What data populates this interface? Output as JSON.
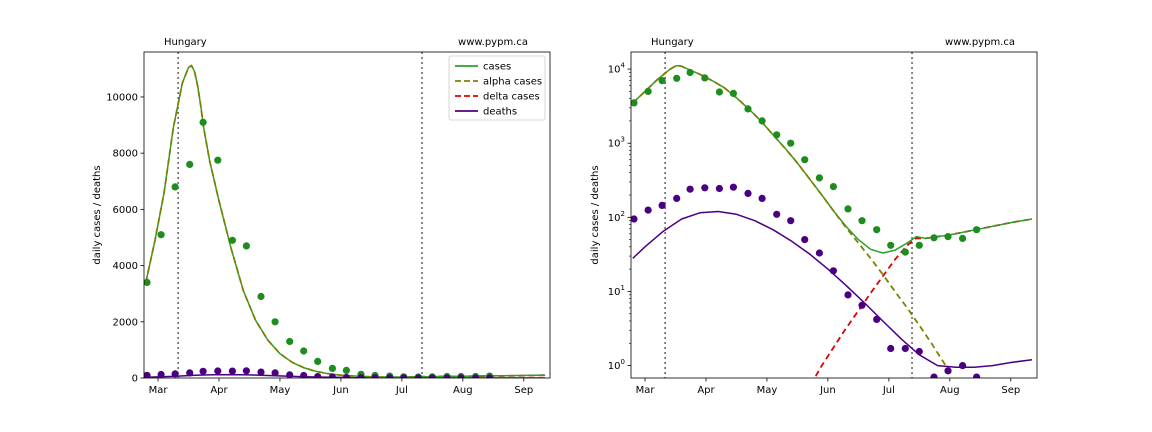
{
  "chart_data": [
    {
      "type": "line",
      "scale": "linear",
      "header_left": "Hungary",
      "header_right": "www.pypm.ca",
      "ylabel": "daily cases / deaths",
      "xlabel": "",
      "title": "",
      "x_unit": "month (Mar=3)",
      "xlim": [
        2.77,
        9.43
      ],
      "ylim": [
        0,
        11600
      ],
      "x_ticks": [
        {
          "x": 3.0,
          "label": "Mar"
        },
        {
          "x": 4.0,
          "label": "Apr"
        },
        {
          "x": 5.0,
          "label": "May"
        },
        {
          "x": 6.0,
          "label": "Jun"
        },
        {
          "x": 7.0,
          "label": "Jul"
        },
        {
          "x": 8.0,
          "label": "Aug"
        },
        {
          "x": 9.0,
          "label": "Sep"
        }
      ],
      "y_ticks": [
        {
          "y": 0,
          "label": "0"
        },
        {
          "y": 2000,
          "label": "2000"
        },
        {
          "y": 4000,
          "label": "4000"
        },
        {
          "y": 6000,
          "label": "6000"
        },
        {
          "y": 8000,
          "label": "8000"
        },
        {
          "y": 10000,
          "label": "10000"
        }
      ],
      "vlines": [
        3.33,
        7.33
      ],
      "legend": {
        "placement": "upper right",
        "entries": [
          {
            "label": "cases",
            "color": "#2ca02c",
            "style": "solid"
          },
          {
            "label": "alpha cases",
            "color": "#808000",
            "style": "dashed"
          },
          {
            "label": "delta cases",
            "color": "#e00000",
            "style": "dashed"
          },
          {
            "label": "deaths",
            "color": "#4b0082",
            "style": "solid"
          }
        ]
      },
      "series": [
        {
          "name": "cases",
          "kind": "line",
          "color": "#2ca02c",
          "dash": "",
          "x": [
            2.8,
            2.95,
            3.1,
            3.25,
            3.4,
            3.5,
            3.55,
            3.6,
            3.65,
            3.7,
            3.75,
            3.85,
            4.0,
            4.2,
            4.4,
            4.6,
            4.8,
            5.0,
            5.2,
            5.4,
            5.6,
            5.8,
            6.0,
            6.3,
            6.6,
            7.0,
            7.3,
            7.6,
            8.0,
            8.4,
            8.8,
            9.2,
            9.35
          ],
          "y": [
            3400,
            4900,
            6600,
            8900,
            10500,
            11050,
            11120,
            10900,
            10400,
            9700,
            8900,
            7700,
            6300,
            4600,
            3100,
            2050,
            1350,
            870,
            560,
            360,
            230,
            150,
            100,
            60,
            40,
            34,
            45,
            55,
            65,
            75,
            85,
            95,
            100
          ]
        },
        {
          "name": "alpha cases",
          "kind": "line",
          "color": "#808000",
          "dash": "6,4",
          "x": [
            2.8,
            2.95,
            3.1,
            3.25,
            3.4,
            3.5,
            3.55,
            3.6,
            3.65,
            3.7,
            3.75,
            3.85,
            4.0,
            4.2,
            4.4,
            4.6,
            4.8,
            5.0,
            5.2,
            5.4,
            5.6,
            5.8,
            6.0,
            6.3,
            6.6,
            7.0,
            7.3,
            7.6,
            8.0
          ],
          "y": [
            3400,
            4900,
            6600,
            8900,
            10500,
            11050,
            11120,
            10900,
            10400,
            9700,
            8900,
            7700,
            6300,
            4600,
            3100,
            2050,
            1350,
            870,
            560,
            360,
            230,
            150,
            100,
            55,
            30,
            14,
            6,
            2,
            0.5
          ]
        },
        {
          "name": "delta cases",
          "kind": "line",
          "color": "#e00000",
          "dash": "6,4",
          "x": [
            5.8,
            6.2,
            6.6,
            7.0,
            7.3,
            7.5,
            8.0,
            8.5,
            9.0,
            9.35
          ],
          "y": [
            0.6,
            2.5,
            8,
            22,
            45,
            55,
            60,
            70,
            85,
            100
          ]
        },
        {
          "name": "deaths",
          "kind": "line",
          "color": "#4b0082",
          "dash": "",
          "x": [
            2.8,
            3.0,
            3.3,
            3.6,
            3.9,
            4.2,
            4.5,
            4.8,
            5.1,
            5.4,
            5.7,
            6.0,
            6.3,
            6.6,
            6.9,
            7.2,
            7.5,
            7.8,
            8.1,
            8.4,
            8.7,
            9.0,
            9.35
          ],
          "y": [
            28,
            40,
            65,
            95,
            115,
            120,
            110,
            90,
            68,
            48,
            32,
            20,
            12,
            7,
            4,
            2.3,
            1.4,
            1.0,
            0.95,
            0.95,
            1.0,
            1.1,
            1.2
          ]
        },
        {
          "name": "cases reported",
          "kind": "points",
          "color": "#1e8c1e",
          "x": [
            2.82,
            3.05,
            3.28,
            3.52,
            3.74,
            3.98,
            4.22,
            4.45,
            4.69,
            4.92,
            5.16,
            5.39,
            5.62,
            5.86,
            6.09,
            6.33,
            6.56,
            6.8,
            7.03,
            7.27,
            7.5,
            7.74,
            7.97,
            8.21,
            8.44
          ],
          "y": [
            3400,
            5100,
            6800,
            7600,
            9100,
            7750,
            4900,
            4700,
            2900,
            2000,
            1300,
            960,
            590,
            340,
            270,
            130,
            90,
            68,
            42,
            35,
            40,
            52,
            55,
            52,
            68
          ]
        },
        {
          "name": "deaths reported",
          "kind": "points",
          "color": "#4b0082",
          "x": [
            2.82,
            3.05,
            3.28,
            3.52,
            3.74,
            3.98,
            4.22,
            4.45,
            4.69,
            4.92,
            5.16,
            5.39,
            5.62,
            5.86,
            6.09,
            6.33,
            6.56,
            6.8,
            7.03,
            7.27,
            7.5,
            7.74,
            7.97,
            8.21,
            8.44
          ],
          "y": [
            95,
            125,
            145,
            180,
            240,
            250,
            245,
            255,
            210,
            180,
            110,
            90,
            50,
            33,
            19,
            9,
            6.5,
            4.2,
            1.7,
            1.7,
            1.55,
            0.7,
            0.85,
            1.0,
            0.7
          ]
        }
      ]
    },
    {
      "type": "line",
      "scale": "log",
      "header_left": "Hungary",
      "header_right": "www.pypm.ca",
      "ylabel": "daily cases / deaths",
      "xlabel": "",
      "title": "",
      "x_unit": "month (Mar=3)",
      "xlim": [
        2.77,
        9.43
      ],
      "ylim": [
        0.68,
        17000
      ],
      "x_ticks": [
        {
          "x": 3.0,
          "label": "Mar"
        },
        {
          "x": 4.0,
          "label": "Apr"
        },
        {
          "x": 5.0,
          "label": "May"
        },
        {
          "x": 6.0,
          "label": "Jun"
        },
        {
          "x": 7.0,
          "label": "Jul"
        },
        {
          "x": 8.0,
          "label": "Aug"
        },
        {
          "x": 9.0,
          "label": "Sep"
        }
      ],
      "y_ticks": [
        {
          "y": 1,
          "base": "10",
          "exp": "0"
        },
        {
          "y": 10,
          "base": "10",
          "exp": "1"
        },
        {
          "y": 100,
          "base": "10",
          "exp": "2"
        },
        {
          "y": 1000,
          "base": "10",
          "exp": "3"
        },
        {
          "y": 10000,
          "base": "10",
          "exp": "4"
        }
      ],
      "vlines": [
        3.33,
        7.38
      ],
      "series": [
        {
          "name": "cases",
          "kind": "line",
          "color": "#2ca02c",
          "dash": "",
          "x": [
            2.8,
            3.0,
            3.2,
            3.4,
            3.5,
            3.55,
            3.6,
            3.7,
            3.9,
            4.1,
            4.3,
            4.5,
            4.7,
            4.9,
            5.1,
            5.3,
            5.5,
            5.7,
            5.9,
            6.1,
            6.3,
            6.5,
            6.7,
            6.9,
            7.1,
            7.3,
            7.45,
            7.6,
            8.0,
            8.5,
            9.0,
            9.35
          ],
          "y": [
            3500,
            5000,
            7200,
            9800,
            11000,
            11100,
            10900,
            10000,
            8500,
            7000,
            5600,
            4100,
            2900,
            2000,
            1300,
            850,
            540,
            330,
            200,
            120,
            75,
            50,
            37,
            33,
            36,
            45,
            55,
            52,
            58,
            70,
            85,
            95
          ]
        },
        {
          "name": "alpha cases",
          "kind": "line",
          "color": "#808000",
          "dash": "6,4",
          "x": [
            2.8,
            3.0,
            3.2,
            3.4,
            3.5,
            3.55,
            3.6,
            3.7,
            3.9,
            4.1,
            4.3,
            4.5,
            4.7,
            4.9,
            5.1,
            5.3,
            5.5,
            5.7,
            5.9,
            6.1,
            6.3,
            6.5,
            6.7,
            6.9,
            7.1,
            7.3,
            7.5,
            7.7,
            7.9,
            8.05
          ],
          "y": [
            3500,
            5000,
            7200,
            9800,
            11000,
            11100,
            10900,
            10000,
            8500,
            7000,
            5600,
            4100,
            2900,
            2000,
            1300,
            850,
            540,
            330,
            200,
            120,
            72,
            45,
            28,
            17,
            10,
            6,
            3.5,
            2,
            1.1,
            0.72
          ]
        },
        {
          "name": "delta cases",
          "kind": "line",
          "color": "#e00000",
          "dash": "6,4",
          "x": [
            5.8,
            5.9,
            6.1,
            6.3,
            6.5,
            6.7,
            6.9,
            7.1,
            7.3,
            7.45,
            7.6,
            8.0,
            8.5,
            9.0,
            9.35
          ],
          "y": [
            0.72,
            1.0,
            1.8,
            3.2,
            5.5,
            9.5,
            16,
            27,
            42,
            52,
            52,
            58,
            70,
            85,
            95
          ]
        },
        {
          "name": "deaths",
          "kind": "line",
          "color": "#4b0082",
          "dash": "",
          "x": [
            2.8,
            3.0,
            3.3,
            3.6,
            3.9,
            4.2,
            4.5,
            4.8,
            5.1,
            5.4,
            5.7,
            6.0,
            6.3,
            6.6,
            6.9,
            7.2,
            7.5,
            7.8,
            8.1,
            8.4,
            8.7,
            9.0,
            9.35
          ],
          "y": [
            28,
            40,
            65,
            95,
            115,
            120,
            110,
            90,
            68,
            48,
            32,
            20,
            12,
            7,
            4,
            2.3,
            1.4,
            1.0,
            0.95,
            0.95,
            1.0,
            1.1,
            1.2
          ]
        },
        {
          "name": "cases reported",
          "kind": "points",
          "color": "#1e8c1e",
          "x": [
            2.82,
            3.05,
            3.28,
            3.52,
            3.74,
            3.98,
            4.22,
            4.45,
            4.69,
            4.92,
            5.16,
            5.39,
            5.62,
            5.86,
            6.09,
            6.33,
            6.56,
            6.8,
            7.03,
            7.27,
            7.5,
            7.74,
            7.97,
            8.21,
            8.44
          ],
          "y": [
            3500,
            5000,
            7000,
            7500,
            9000,
            7600,
            4900,
            4700,
            2900,
            2000,
            1300,
            1000,
            600,
            340,
            260,
            130,
            90,
            68,
            42,
            34,
            42,
            53,
            55,
            52,
            68
          ]
        },
        {
          "name": "deaths reported",
          "kind": "points",
          "color": "#4b0082",
          "x": [
            2.82,
            3.05,
            3.28,
            3.52,
            3.74,
            3.98,
            4.22,
            4.45,
            4.69,
            4.92,
            5.16,
            5.39,
            5.62,
            5.86,
            6.09,
            6.33,
            6.56,
            6.8,
            7.03,
            7.27,
            7.5,
            7.74,
            7.97,
            8.21,
            8.44
          ],
          "y": [
            95,
            125,
            145,
            180,
            240,
            250,
            245,
            255,
            210,
            180,
            110,
            90,
            50,
            33,
            19,
            9,
            6.5,
            4.2,
            1.7,
            1.7,
            1.55,
            0.7,
            0.85,
            1.0,
            0.7
          ]
        }
      ]
    }
  ]
}
